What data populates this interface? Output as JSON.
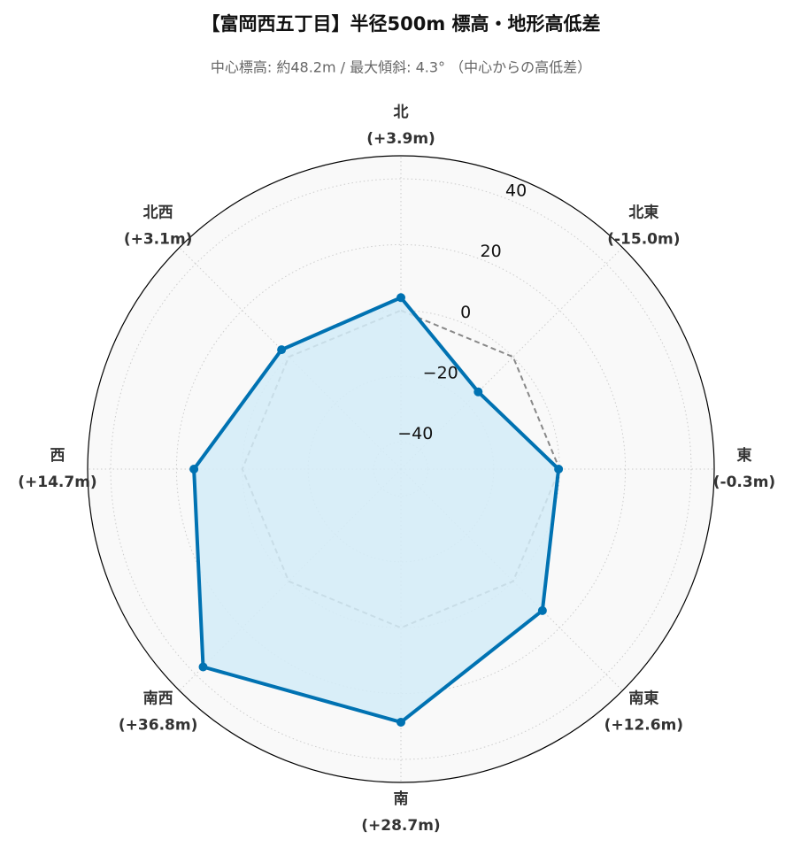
{
  "chart_data": {
    "type": "radar",
    "title": "【富岡西五丁目】半径500m 標高・地形高低差",
    "subtitle": "中心標高: 約48.2m / 最大傾斜: 4.3° （中心からの高低差）",
    "categories": [
      "北",
      "北東",
      "東",
      "南東",
      "南",
      "南西",
      "西",
      "北西"
    ],
    "values": [
      3.9,
      -15.0,
      -0.3,
      12.6,
      28.7,
      36.8,
      14.7,
      3.1
    ],
    "value_labels": [
      "(+3.9m)",
      "(-15.0m)",
      "(-0.3m)",
      "(+12.6m)",
      "(+28.7m)",
      "(+36.8m)",
      "(+14.7m)",
      "(+3.1m)"
    ],
    "color": "#0072b2",
    "fill": "#d3ecf8",
    "ylim": [
      -48.2,
      47
    ],
    "yticks": [
      {
        "value": -40,
        "label": "−40"
      },
      {
        "value": -20,
        "label": "−20"
      },
      0,
      20,
      40
    ],
    "reference_line": {
      "value": 0,
      "color": "#888888",
      "style": "dashed"
    },
    "grid": true
  }
}
